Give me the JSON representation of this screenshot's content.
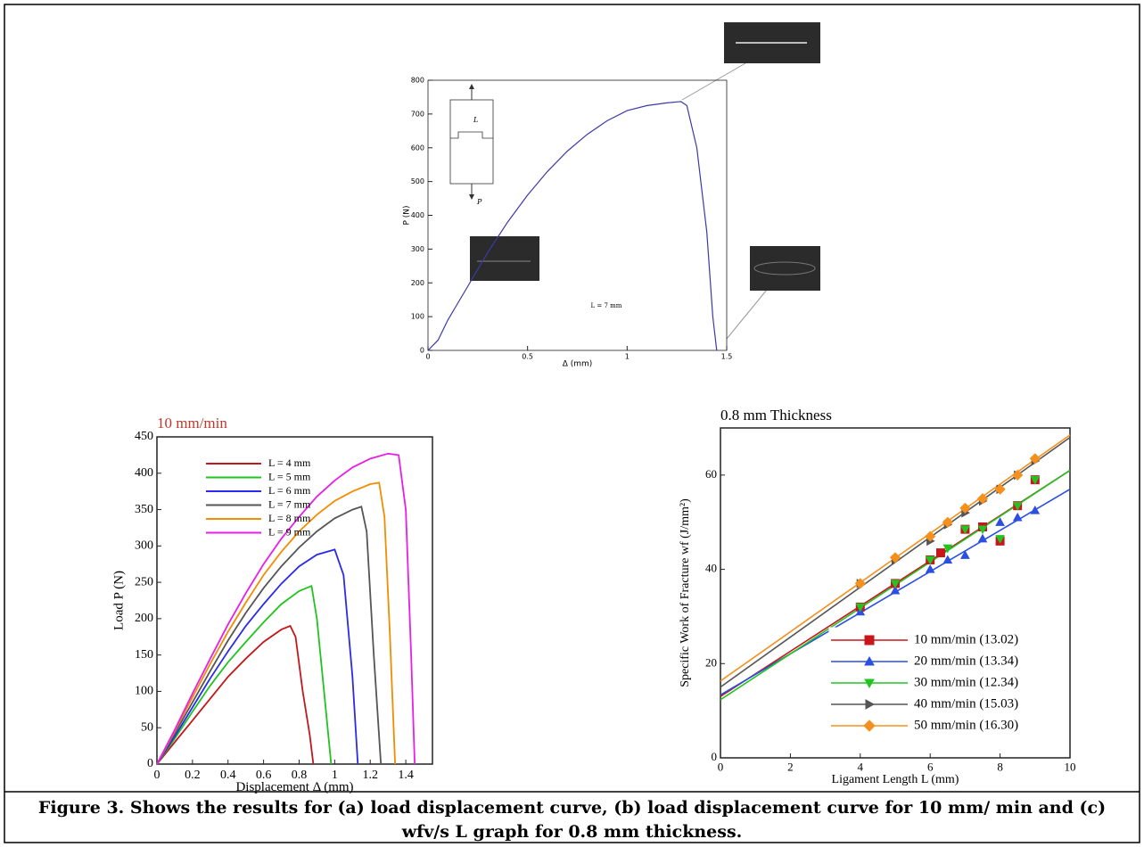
{
  "chart_data": [
    {
      "type": "line",
      "xlabel": "Δ (mm)",
      "ylabel": "P (N)",
      "annotation": "L = 7 mm",
      "schematic_labels": [
        "L",
        "P"
      ],
      "x": [
        0,
        0.05,
        0.1,
        0.2,
        0.3,
        0.4,
        0.5,
        0.6,
        0.7,
        0.8,
        0.9,
        1.0,
        1.1,
        1.2,
        1.27,
        1.3,
        1.35,
        1.4,
        1.43,
        1.45
      ],
      "values": [
        0,
        30,
        90,
        190,
        290,
        380,
        460,
        530,
        590,
        640,
        680,
        710,
        725,
        733,
        737,
        725,
        600,
        350,
        100,
        0
      ],
      "color": "#3a3aa8",
      "xlim": [
        0,
        1.5
      ],
      "xticks": [
        0,
        0.5,
        1,
        1.5
      ],
      "ylim": [
        0,
        800
      ],
      "yticks": [
        0,
        100,
        200,
        300,
        400,
        500,
        600,
        700,
        800
      ]
    },
    {
      "type": "line",
      "title": "10 mm/min",
      "title_color": "#c0392b",
      "xlabel": "Displacement Δ (mm)",
      "ylabel": "Load P (N)",
      "legend": "upper left",
      "xlim": [
        0,
        1.55
      ],
      "xticks": [
        0,
        0.2,
        0.4,
        0.6,
        0.8,
        1,
        1.2,
        1.4
      ],
      "ylim": [
        0,
        450
      ],
      "yticks": [
        0,
        50,
        100,
        150,
        200,
        250,
        300,
        350,
        400,
        450
      ],
      "series": [
        {
          "name": "L = 4 mm",
          "color": "#c0181c",
          "x": [
            0,
            0.1,
            0.2,
            0.3,
            0.4,
            0.5,
            0.6,
            0.7,
            0.75,
            0.78,
            0.82,
            0.86,
            0.88
          ],
          "values": [
            0,
            30,
            60,
            90,
            120,
            145,
            168,
            185,
            190,
            175,
            100,
            40,
            0
          ]
        },
        {
          "name": "L = 5 mm",
          "color": "#1fc41f",
          "x": [
            0,
            0.1,
            0.2,
            0.3,
            0.4,
            0.5,
            0.6,
            0.7,
            0.8,
            0.87,
            0.9,
            0.94,
            0.98
          ],
          "values": [
            0,
            35,
            72,
            108,
            140,
            168,
            195,
            220,
            238,
            245,
            200,
            100,
            0
          ]
        },
        {
          "name": "L = 6 mm",
          "color": "#2a2ae8",
          "x": [
            0,
            0.1,
            0.2,
            0.3,
            0.4,
            0.5,
            0.6,
            0.7,
            0.8,
            0.9,
            1.0,
            1.05,
            1.1,
            1.13
          ],
          "values": [
            0,
            38,
            78,
            118,
            155,
            190,
            220,
            248,
            272,
            288,
            295,
            260,
            120,
            0
          ]
        },
        {
          "name": "L = 7 mm",
          "color": "#555555",
          "x": [
            0,
            0.1,
            0.2,
            0.3,
            0.4,
            0.5,
            0.6,
            0.7,
            0.8,
            0.9,
            1.0,
            1.1,
            1.15,
            1.18,
            1.22,
            1.26
          ],
          "values": [
            0,
            42,
            85,
            128,
            170,
            208,
            242,
            272,
            298,
            320,
            338,
            350,
            354,
            320,
            150,
            0
          ]
        },
        {
          "name": "L = 8 mm",
          "color": "#f28c00",
          "x": [
            0,
            0.1,
            0.2,
            0.3,
            0.4,
            0.5,
            0.6,
            0.7,
            0.8,
            0.9,
            1.0,
            1.1,
            1.2,
            1.25,
            1.28,
            1.31,
            1.34
          ],
          "values": [
            0,
            45,
            92,
            138,
            182,
            222,
            260,
            292,
            320,
            343,
            362,
            375,
            385,
            387,
            340,
            180,
            0
          ]
        },
        {
          "name": "L = 9 mm",
          "color": "#e81ee8",
          "x": [
            0,
            0.1,
            0.2,
            0.3,
            0.4,
            0.5,
            0.6,
            0.7,
            0.8,
            0.9,
            1.0,
            1.1,
            1.2,
            1.3,
            1.36,
            1.4,
            1.43,
            1.45
          ],
          "values": [
            0,
            47,
            97,
            145,
            192,
            235,
            275,
            310,
            340,
            368,
            390,
            408,
            420,
            427,
            425,
            350,
            150,
            0
          ]
        }
      ]
    },
    {
      "type": "scatter",
      "title": "0.8  mm Thickness",
      "xlabel": "Ligament Length L (mm)",
      "ylabel": "Specific Work of Fracture wf (J/mm²)",
      "legend": "lower right",
      "xlim": [
        0,
        10
      ],
      "xticks": [
        0,
        2,
        4,
        6,
        8,
        10
      ],
      "ylim": [
        0,
        70
      ],
      "yticks": [
        0,
        20,
        40,
        60
      ],
      "series": [
        {
          "name": "10 mm/min (13.02)",
          "color": "#c8171c",
          "marker": "square",
          "x": [
            4,
            5,
            6,
            6.3,
            7,
            7.5,
            8,
            8.5,
            9
          ],
          "values": [
            32,
            37,
            42,
            43.5,
            48.5,
            49,
            46,
            53.5,
            59
          ],
          "fit_x": [
            0,
            10
          ],
          "fit_values": [
            13.02,
            61
          ]
        },
        {
          "name": "20 mm/min (13.34)",
          "color": "#2b4fe0",
          "marker": "triangle-up",
          "x": [
            4,
            5,
            6,
            6.5,
            7,
            7.5,
            8,
            8.5,
            9
          ],
          "values": [
            31,
            35.5,
            40,
            42,
            43,
            46.5,
            50,
            51,
            52.5
          ],
          "fit_x": [
            0,
            10
          ],
          "fit_values": [
            13.34,
            57
          ]
        },
        {
          "name": "30 mm/min (12.34)",
          "color": "#22c422",
          "marker": "triangle-down",
          "x": [
            4,
            5,
            6,
            6.5,
            7,
            7.5,
            8,
            8.5,
            9
          ],
          "values": [
            32,
            37,
            42,
            44.5,
            48.5,
            48.5,
            46.5,
            53.5,
            59
          ],
          "fit_x": [
            0,
            10
          ],
          "fit_values": [
            12.34,
            61
          ]
        },
        {
          "name": "40 mm/min (15.03)",
          "color": "#555555",
          "marker": "triangle-right",
          "x": [
            4,
            5,
            6,
            6.5,
            7,
            7.5,
            8,
            8.5,
            9
          ],
          "values": [
            37,
            42,
            46,
            49.5,
            52,
            54.5,
            57,
            60,
            63
          ],
          "fit_x": [
            0,
            10
          ],
          "fit_values": [
            15.03,
            68
          ]
        },
        {
          "name": "50 mm/min (16.30)",
          "color": "#f5901e",
          "marker": "diamond",
          "x": [
            4,
            5,
            6,
            6.5,
            7,
            7.5,
            8,
            8.5,
            9
          ],
          "values": [
            37,
            42.5,
            47,
            50,
            53,
            55,
            57,
            60,
            63.5
          ],
          "fit_x": [
            0,
            10
          ],
          "fit_values": [
            16.3,
            68.5
          ]
        }
      ]
    }
  ],
  "caption": "Figure 3. Shows the results for (a) load displacement curve, (b) load displacement curve for 10 mm/ min and (c) wfv/s L graph for 0.8 mm thickness."
}
